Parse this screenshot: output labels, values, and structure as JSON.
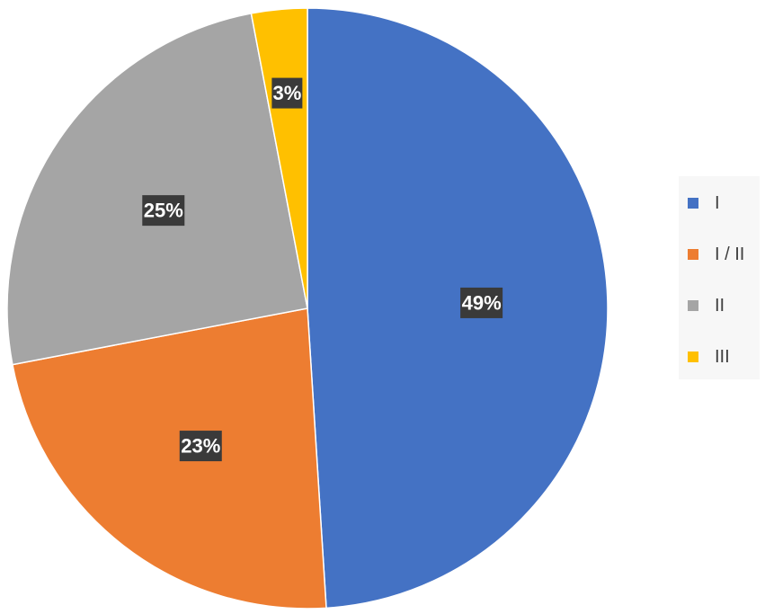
{
  "chart_data": {
    "type": "pie",
    "categories": [
      "I",
      "I / II",
      "II",
      "III"
    ],
    "values": [
      49,
      23,
      25,
      3
    ],
    "data_labels": [
      "49%",
      "23%",
      "25%",
      "3%"
    ],
    "colors": [
      "#4472c4",
      "#ed7d31",
      "#a5a5a5",
      "#ffc000"
    ],
    "legend_position": "right",
    "start_angle": "12 o'clock, clockwise"
  }
}
